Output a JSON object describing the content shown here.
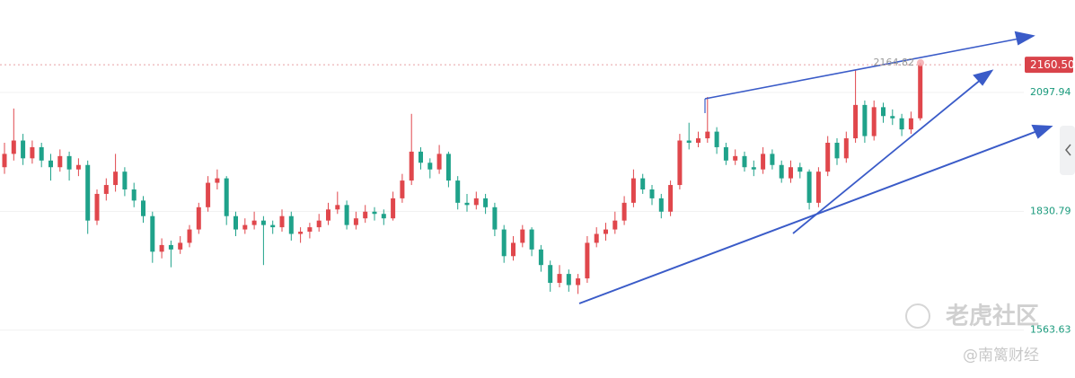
{
  "chart_data": {
    "type": "candlestick",
    "up_color": "#e0474c",
    "down_color": "#1fa28a",
    "ylim": [
      1456,
      2306
    ],
    "yticks": [
      1563.63,
      1830.79,
      2097.94
    ],
    "last_price": {
      "value": 2160.5,
      "label": "2160.50"
    },
    "high_label": 2164.82,
    "candles": [
      [
        1930,
        1985,
        1915,
        1960
      ],
      [
        1960,
        2062,
        1945,
        1990
      ],
      [
        1990,
        2005,
        1935,
        1950
      ],
      [
        1950,
        1990,
        1938,
        1975
      ],
      [
        1975,
        1985,
        1930,
        1945
      ],
      [
        1945,
        1960,
        1900,
        1930
      ],
      [
        1930,
        1970,
        1920,
        1955
      ],
      [
        1955,
        1965,
        1900,
        1925
      ],
      [
        1925,
        1950,
        1910,
        1935
      ],
      [
        1935,
        1945,
        1780,
        1810
      ],
      [
        1810,
        1880,
        1800,
        1870
      ],
      [
        1870,
        1905,
        1855,
        1890
      ],
      [
        1890,
        1960,
        1875,
        1920
      ],
      [
        1920,
        1930,
        1865,
        1880
      ],
      [
        1880,
        1895,
        1840,
        1855
      ],
      [
        1855,
        1865,
        1805,
        1820
      ],
      [
        1820,
        1830,
        1715,
        1740
      ],
      [
        1740,
        1770,
        1725,
        1755
      ],
      [
        1755,
        1765,
        1705,
        1745
      ],
      [
        1745,
        1775,
        1735,
        1760
      ],
      [
        1760,
        1800,
        1750,
        1790
      ],
      [
        1790,
        1850,
        1780,
        1840
      ],
      [
        1840,
        1910,
        1830,
        1895
      ],
      [
        1895,
        1925,
        1880,
        1905
      ],
      [
        1905,
        1910,
        1800,
        1820
      ],
      [
        1820,
        1830,
        1775,
        1790
      ],
      [
        1790,
        1815,
        1780,
        1800
      ],
      [
        1800,
        1830,
        1790,
        1810
      ],
      [
        1810,
        1820,
        1710,
        1800
      ],
      [
        1800,
        1810,
        1780,
        1795
      ],
      [
        1795,
        1835,
        1785,
        1820
      ],
      [
        1820,
        1830,
        1765,
        1780
      ],
      [
        1780,
        1795,
        1760,
        1785
      ],
      [
        1785,
        1805,
        1770,
        1795
      ],
      [
        1795,
        1825,
        1785,
        1810
      ],
      [
        1810,
        1850,
        1800,
        1835
      ],
      [
        1835,
        1875,
        1825,
        1845
      ],
      [
        1845,
        1855,
        1790,
        1800
      ],
      [
        1800,
        1830,
        1790,
        1815
      ],
      [
        1815,
        1845,
        1805,
        1830
      ],
      [
        1830,
        1840,
        1810,
        1825
      ],
      [
        1825,
        1835,
        1800,
        1815
      ],
      [
        1815,
        1875,
        1810,
        1860
      ],
      [
        1860,
        1915,
        1850,
        1900
      ],
      [
        1900,
        2050,
        1890,
        1965
      ],
      [
        1965,
        1975,
        1925,
        1940
      ],
      [
        1940,
        1950,
        1905,
        1925
      ],
      [
        1925,
        1980,
        1915,
        1960
      ],
      [
        1960,
        1965,
        1885,
        1900
      ],
      [
        1900,
        1910,
        1835,
        1850
      ],
      [
        1850,
        1870,
        1830,
        1845
      ],
      [
        1845,
        1875,
        1835,
        1860
      ],
      [
        1860,
        1870,
        1825,
        1840
      ],
      [
        1840,
        1850,
        1775,
        1790
      ],
      [
        1790,
        1800,
        1715,
        1730
      ],
      [
        1730,
        1775,
        1720,
        1760
      ],
      [
        1760,
        1800,
        1750,
        1790
      ],
      [
        1790,
        1795,
        1730,
        1745
      ],
      [
        1745,
        1755,
        1695,
        1710
      ],
      [
        1710,
        1720,
        1650,
        1670
      ],
      [
        1670,
        1710,
        1660,
        1690
      ],
      [
        1690,
        1700,
        1650,
        1665
      ],
      [
        1665,
        1690,
        1645,
        1680
      ],
      [
        1680,
        1775,
        1670,
        1760
      ],
      [
        1760,
        1795,
        1750,
        1780
      ],
      [
        1780,
        1805,
        1765,
        1790
      ],
      [
        1790,
        1830,
        1780,
        1810
      ],
      [
        1810,
        1865,
        1800,
        1850
      ],
      [
        1850,
        1925,
        1840,
        1905
      ],
      [
        1905,
        1915,
        1870,
        1880
      ],
      [
        1880,
        1890,
        1845,
        1860
      ],
      [
        1860,
        1870,
        1815,
        1830
      ],
      [
        1830,
        1900,
        1820,
        1890
      ],
      [
        1890,
        2005,
        1880,
        1990
      ],
      [
        1990,
        2030,
        1970,
        1985
      ],
      [
        1985,
        2010,
        1975,
        1995
      ],
      [
        1995,
        2088,
        1985,
        2010
      ],
      [
        2010,
        2020,
        1960,
        1975
      ],
      [
        1975,
        1985,
        1935,
        1945
      ],
      [
        1945,
        1970,
        1935,
        1955
      ],
      [
        1955,
        1965,
        1920,
        1930
      ],
      [
        1930,
        1945,
        1910,
        1925
      ],
      [
        1925,
        1975,
        1915,
        1960
      ],
      [
        1960,
        1970,
        1925,
        1935
      ],
      [
        1935,
        1945,
        1895,
        1905
      ],
      [
        1905,
        1945,
        1895,
        1930
      ],
      [
        1930,
        1940,
        1905,
        1920
      ],
      [
        1920,
        1925,
        1835,
        1850
      ],
      [
        1850,
        1930,
        1840,
        1920
      ],
      [
        1920,
        2000,
        1910,
        1985
      ],
      [
        1985,
        1995,
        1935,
        1950
      ],
      [
        1950,
        2010,
        1940,
        1995
      ],
      [
        1995,
        2148,
        1985,
        2070
      ],
      [
        2070,
        2080,
        1985,
        2000
      ],
      [
        2000,
        2080,
        1990,
        2065
      ],
      [
        2065,
        2075,
        2030,
        2045
      ],
      [
        2045,
        2060,
        2025,
        2040
      ],
      [
        2040,
        2050,
        2000,
        2015
      ],
      [
        2015,
        2055,
        2005,
        2040
      ],
      [
        2040,
        2164.82,
        2035,
        2160.5
      ]
    ],
    "watermark": {
      "logo": "老虎社区",
      "author": "@南篱财经"
    }
  }
}
